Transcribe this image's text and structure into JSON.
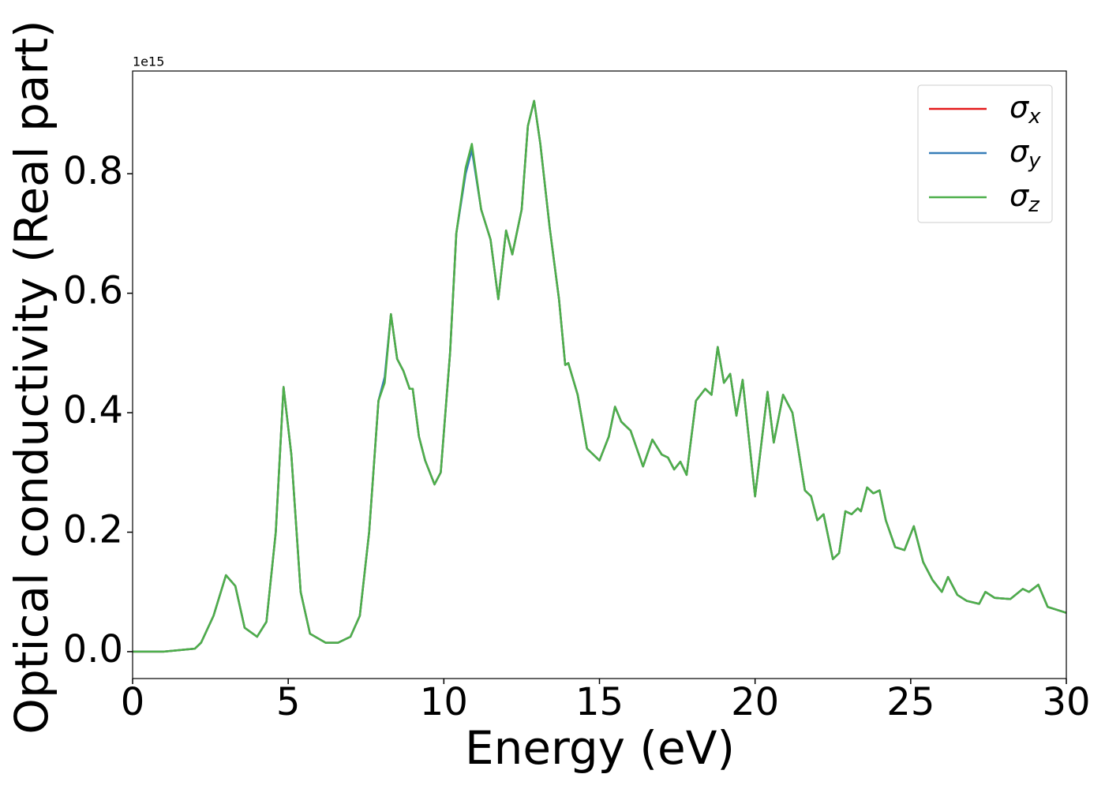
{
  "chart_data": {
    "type": "line",
    "xlabel": "Energy (eV)",
    "ylabel": "Optical conductivity (Real part)",
    "y_offset_label": "1e15",
    "xlim": [
      0,
      30
    ],
    "ylim": [
      -0.045,
      0.972
    ],
    "xticks": [
      0,
      5,
      10,
      15,
      20,
      25,
      30
    ],
    "yticks": [
      {
        "value": 0,
        "label": "0.0"
      },
      {
        "value": 0.2,
        "label": "0.2"
      },
      {
        "value": 0.4,
        "label": "0.4"
      },
      {
        "value": 0.6,
        "label": "0.6"
      },
      {
        "value": 0.8,
        "label": "0.8"
      }
    ],
    "legend": "upper right",
    "x": [
      0,
      1,
      2,
      2.2,
      2.6,
      3.0,
      3.3,
      3.6,
      4.0,
      4.3,
      4.6,
      4.85,
      5.1,
      5.4,
      5.7,
      6.2,
      6.6,
      7.0,
      7.3,
      7.6,
      7.9,
      8.1,
      8.3,
      8.5,
      8.7,
      8.9,
      9.0,
      9.2,
      9.4,
      9.7,
      9.9,
      10.2,
      10.4,
      10.7,
      10.9,
      11.2,
      11.5,
      11.75,
      12.0,
      12.2,
      12.5,
      12.7,
      12.9,
      13.1,
      13.4,
      13.7,
      13.9,
      14.0,
      14.3,
      14.6,
      15.0,
      15.3,
      15.5,
      15.7,
      16.0,
      16.4,
      16.7,
      17.0,
      17.2,
      17.4,
      17.6,
      17.8,
      18.1,
      18.4,
      18.6,
      18.8,
      19.0,
      19.2,
      19.4,
      19.6,
      20.0,
      20.4,
      20.6,
      20.9,
      21.2,
      21.6,
      21.8,
      22.0,
      22.2,
      22.5,
      22.7,
      22.9,
      23.1,
      23.3,
      23.4,
      23.6,
      23.8,
      24.0,
      24.2,
      24.5,
      24.8,
      25.1,
      25.4,
      25.7,
      26.0,
      26.2,
      26.5,
      26.8,
      27.2,
      27.4,
      27.7,
      28.2,
      28.6,
      28.8,
      29.1,
      29.4,
      30
    ],
    "series": [
      {
        "name": "σx",
        "color": "#e41a1c",
        "values": [
          0,
          0,
          0.005,
          0.015,
          0.06,
          0.128,
          0.11,
          0.04,
          0.025,
          0.05,
          0.2,
          0.443,
          0.33,
          0.1,
          0.03,
          0.015,
          0.015,
          0.025,
          0.06,
          0.2,
          0.42,
          0.455,
          0.565,
          0.49,
          0.47,
          0.44,
          0.44,
          0.36,
          0.32,
          0.28,
          0.3,
          0.5,
          0.7,
          0.805,
          0.845,
          0.74,
          0.69,
          0.59,
          0.705,
          0.665,
          0.74,
          0.88,
          0.922,
          0.85,
          0.71,
          0.59,
          0.48,
          0.483,
          0.43,
          0.34,
          0.32,
          0.36,
          0.41,
          0.385,
          0.37,
          0.31,
          0.355,
          0.33,
          0.325,
          0.305,
          0.318,
          0.296,
          0.42,
          0.44,
          0.43,
          0.51,
          0.45,
          0.465,
          0.395,
          0.455,
          0.26,
          0.435,
          0.35,
          0.43,
          0.4,
          0.27,
          0.26,
          0.22,
          0.23,
          0.155,
          0.165,
          0.235,
          0.23,
          0.24,
          0.235,
          0.275,
          0.265,
          0.27,
          0.22,
          0.175,
          0.17,
          0.21,
          0.15,
          0.12,
          0.1,
          0.125,
          0.095,
          0.085,
          0.08,
          0.1,
          0.09,
          0.088,
          0.105,
          0.1,
          0.112,
          0.075,
          0.065
        ]
      },
      {
        "name": "σy",
        "color": "#377eb8",
        "values": [
          0,
          0,
          0.005,
          0.015,
          0.06,
          0.128,
          0.11,
          0.04,
          0.025,
          0.05,
          0.2,
          0.443,
          0.33,
          0.1,
          0.03,
          0.015,
          0.015,
          0.025,
          0.06,
          0.2,
          0.42,
          0.46,
          0.565,
          0.49,
          0.47,
          0.44,
          0.44,
          0.36,
          0.32,
          0.28,
          0.3,
          0.5,
          0.7,
          0.8,
          0.84,
          0.74,
          0.69,
          0.59,
          0.705,
          0.665,
          0.74,
          0.88,
          0.922,
          0.85,
          0.71,
          0.59,
          0.48,
          0.483,
          0.43,
          0.34,
          0.32,
          0.36,
          0.41,
          0.385,
          0.37,
          0.31,
          0.355,
          0.33,
          0.325,
          0.305,
          0.318,
          0.296,
          0.42,
          0.44,
          0.43,
          0.51,
          0.45,
          0.465,
          0.395,
          0.455,
          0.26,
          0.435,
          0.35,
          0.43,
          0.4,
          0.27,
          0.26,
          0.22,
          0.23,
          0.155,
          0.165,
          0.235,
          0.23,
          0.24,
          0.235,
          0.275,
          0.265,
          0.27,
          0.22,
          0.175,
          0.17,
          0.21,
          0.15,
          0.12,
          0.1,
          0.125,
          0.095,
          0.085,
          0.08,
          0.1,
          0.09,
          0.088,
          0.105,
          0.1,
          0.112,
          0.075,
          0.065
        ]
      },
      {
        "name": "σz",
        "color": "#4daf4a",
        "values": [
          0,
          0,
          0.005,
          0.015,
          0.06,
          0.128,
          0.11,
          0.04,
          0.025,
          0.05,
          0.2,
          0.443,
          0.33,
          0.1,
          0.03,
          0.015,
          0.015,
          0.025,
          0.06,
          0.2,
          0.42,
          0.45,
          0.565,
          0.49,
          0.47,
          0.44,
          0.44,
          0.36,
          0.32,
          0.28,
          0.3,
          0.5,
          0.7,
          0.81,
          0.85,
          0.74,
          0.69,
          0.59,
          0.705,
          0.665,
          0.74,
          0.88,
          0.922,
          0.85,
          0.71,
          0.59,
          0.48,
          0.483,
          0.43,
          0.34,
          0.32,
          0.36,
          0.41,
          0.385,
          0.37,
          0.31,
          0.355,
          0.33,
          0.325,
          0.305,
          0.318,
          0.296,
          0.42,
          0.44,
          0.43,
          0.51,
          0.45,
          0.465,
          0.395,
          0.455,
          0.26,
          0.435,
          0.35,
          0.43,
          0.4,
          0.27,
          0.26,
          0.22,
          0.23,
          0.155,
          0.165,
          0.235,
          0.23,
          0.24,
          0.235,
          0.275,
          0.265,
          0.27,
          0.22,
          0.175,
          0.17,
          0.21,
          0.15,
          0.12,
          0.1,
          0.125,
          0.095,
          0.085,
          0.08,
          0.1,
          0.09,
          0.088,
          0.105,
          0.1,
          0.112,
          0.075,
          0.065
        ]
      }
    ]
  }
}
